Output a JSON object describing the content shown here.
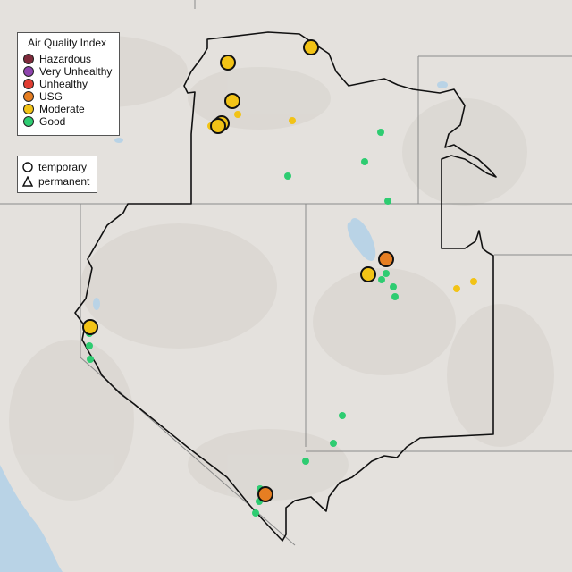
{
  "colors": {
    "background": "#e4e1dd",
    "boundary": "#111111",
    "state_lines": "#8a8a8a",
    "water": "#b9d3e6"
  },
  "legend": {
    "title": "Air Quality Index",
    "categories": [
      {
        "label": "Hazardous",
        "color": "#7e2a3a"
      },
      {
        "label": "Very Unhealthy",
        "color": "#8e44ad"
      },
      {
        "label": "Unhealthy",
        "color": "#e03c31"
      },
      {
        "label": "USG",
        "color": "#e67e22"
      },
      {
        "label": "Moderate",
        "color": "#f2c316"
      },
      {
        "label": "Good",
        "color": "#2ecc71"
      }
    ],
    "monitor_types": [
      {
        "label": "temporary",
        "icon": "circle-icon"
      },
      {
        "label": "permanent",
        "icon": "triangle-icon"
      }
    ]
  }
}
